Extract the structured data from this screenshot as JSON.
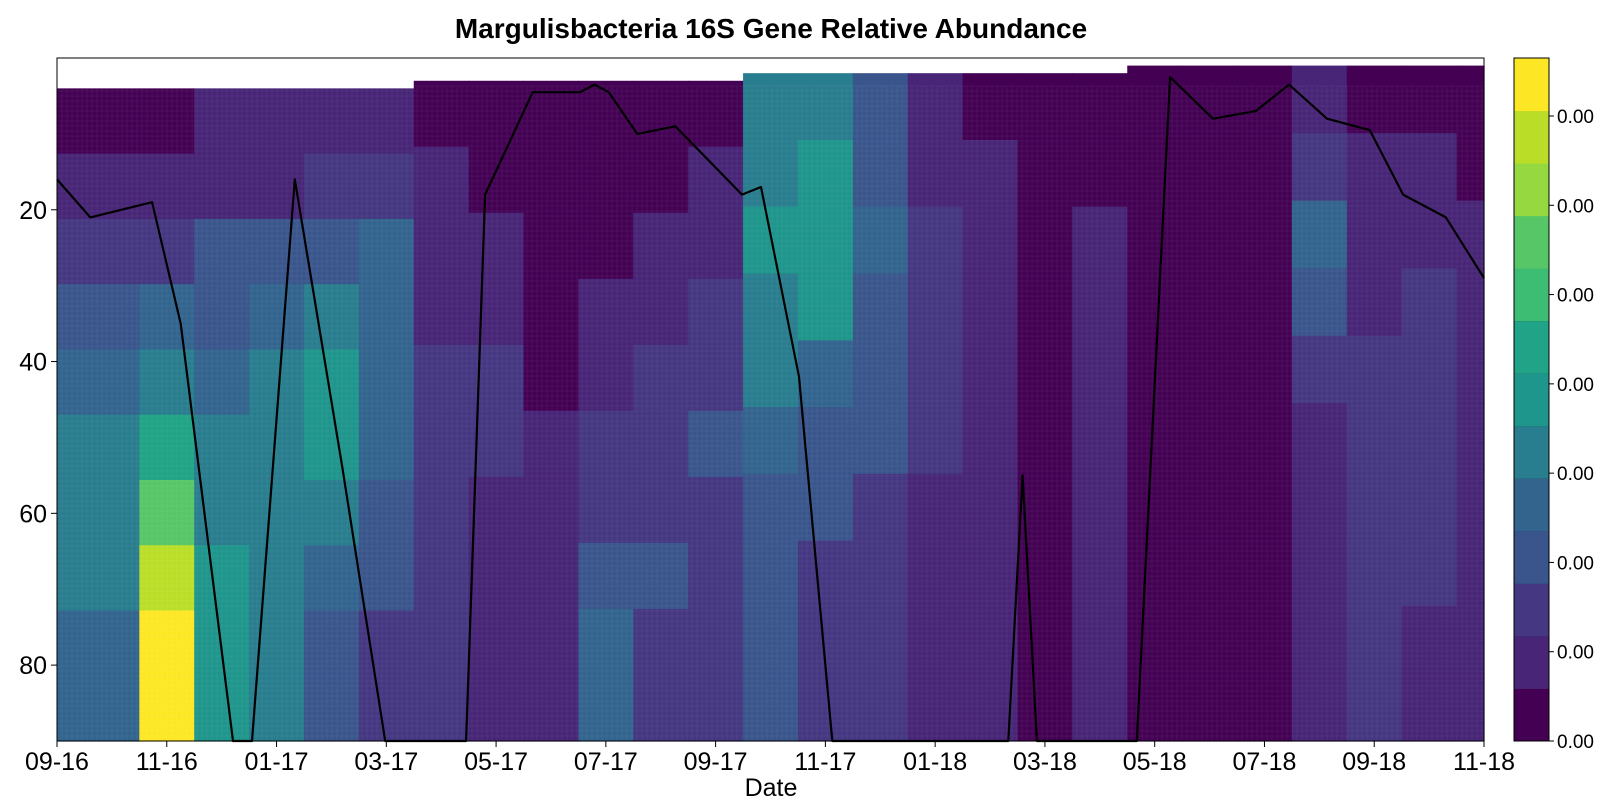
{
  "chart_data": {
    "type": "heatmap",
    "title": "Margulisbacteria 16S Gene Relative Abundance",
    "xlabel": "Date",
    "ylabel": "",
    "x_tick_labels": [
      "09-16",
      "11-16",
      "01-17",
      "03-17",
      "05-17",
      "07-17",
      "09-17",
      "11-17",
      "01-18",
      "03-18",
      "05-18",
      "07-18",
      "09-18",
      "11-18"
    ],
    "y_tick_labels": [
      "20",
      "40",
      "60",
      "80"
    ],
    "y_ticks": [
      20,
      40,
      60,
      80
    ],
    "ylim": [
      90,
      0
    ],
    "y_inverted": true,
    "colorbar": {
      "tick_labels": [
        "0.00",
        "0.00",
        "0.00",
        "0.00",
        "0.00",
        "0.00",
        "0.00",
        "0.00"
      ],
      "levels": 13,
      "colors": [
        "#440154",
        "#481467",
        "#482576",
        "#453781",
        "#3f4788",
        "#39558c",
        "#32648e",
        "#2d718e",
        "#287d8e",
        "#238a8d",
        "#1f968b",
        "#20a386",
        "#29af7f",
        "#3dbc74",
        "#56c667",
        "#75d054",
        "#95d840",
        "#bade28",
        "#dde318",
        "#fde725"
      ]
    },
    "columns": [
      {
        "date": "09-16",
        "top": 4,
        "vals": [
          0.05,
          0.1,
          0.2,
          0.3,
          0.35,
          0.4,
          0.42,
          0.4,
          0.35,
          0.32
        ]
      },
      {
        "date": "10-16",
        "top": 4,
        "vals": [
          0.05,
          0.1,
          0.18,
          0.28,
          0.35,
          0.42,
          0.45,
          0.4,
          0.38,
          0.35
        ]
      },
      {
        "date": "11-16",
        "top": 4,
        "vals": [
          0.06,
          0.12,
          0.2,
          0.32,
          0.45,
          0.6,
          0.75,
          0.9,
          0.98,
          1.0
        ]
      },
      {
        "date": "12-16",
        "top": 4,
        "vals": [
          0.08,
          0.15,
          0.25,
          0.3,
          0.35,
          0.4,
          0.45,
          0.48,
          0.5,
          0.5
        ]
      },
      {
        "date": "01-17",
        "top": 4,
        "vals": [
          0.1,
          0.15,
          0.25,
          0.35,
          0.45,
          0.45,
          0.45,
          0.42,
          0.4,
          0.4
        ]
      },
      {
        "date": "02-17",
        "top": 4,
        "vals": [
          0.08,
          0.18,
          0.3,
          0.42,
          0.48,
          0.48,
          0.42,
          0.36,
          0.3,
          0.28
        ]
      },
      {
        "date": "03-17",
        "top": 4,
        "vals": [
          0.1,
          0.22,
          0.32,
          0.36,
          0.35,
          0.32,
          0.28,
          0.25,
          0.22,
          0.2
        ]
      },
      {
        "date": "04-17",
        "top": 3,
        "vals": [
          0.05,
          0.1,
          0.12,
          0.15,
          0.18,
          0.2,
          0.18,
          0.18,
          0.18,
          0.18
        ]
      },
      {
        "date": "05-17",
        "top": 3,
        "vals": [
          0.02,
          0.05,
          0.1,
          0.15,
          0.18,
          0.18,
          0.15,
          0.12,
          0.1,
          0.08
        ]
      },
      {
        "date": "06-17",
        "top": 3,
        "vals": [
          0.0,
          0.02,
          0.04,
          0.05,
          0.06,
          0.08,
          0.1,
          0.12,
          0.15,
          0.15
        ]
      },
      {
        "date": "07-17",
        "top": 3,
        "vals": [
          0.0,
          0.02,
          0.05,
          0.08,
          0.15,
          0.18,
          0.22,
          0.28,
          0.32,
          0.32
        ]
      },
      {
        "date": "08-17",
        "top": 3,
        "vals": [
          0.02,
          0.05,
          0.1,
          0.15,
          0.18,
          0.2,
          0.22,
          0.25,
          0.22,
          0.2
        ]
      },
      {
        "date": "09-17",
        "top": 3,
        "vals": [
          0.05,
          0.08,
          0.12,
          0.18,
          0.22,
          0.25,
          0.22,
          0.2,
          0.18,
          0.16
        ]
      },
      {
        "date": "10-17",
        "top": 2,
        "vals": [
          0.4,
          0.45,
          0.48,
          0.46,
          0.4,
          0.35,
          0.3,
          0.28,
          0.26,
          0.26
        ]
      },
      {
        "date": "11-17",
        "top": 2,
        "vals": [
          0.42,
          0.5,
          0.52,
          0.48,
          0.38,
          0.3,
          0.25,
          0.22,
          0.22,
          0.22
        ]
      },
      {
        "date": "12-17",
        "top": 2,
        "vals": [
          0.25,
          0.3,
          0.32,
          0.3,
          0.28,
          0.25,
          0.22,
          0.2,
          0.18,
          0.18
        ]
      },
      {
        "date": "01-18",
        "top": 2,
        "vals": [
          0.1,
          0.15,
          0.2,
          0.22,
          0.2,
          0.18,
          0.15,
          0.12,
          0.1,
          0.1
        ]
      },
      {
        "date": "02-18",
        "top": 2,
        "vals": [
          0.05,
          0.08,
          0.1,
          0.12,
          0.14,
          0.12,
          0.12,
          0.1,
          0.08,
          0.08
        ]
      },
      {
        "date": "03-18",
        "top": 2,
        "vals": [
          0.0,
          0.02,
          0.02,
          0.03,
          0.03,
          0.03,
          0.03,
          0.02,
          0.02,
          0.02
        ]
      },
      {
        "date": "04-18",
        "top": 2,
        "vals": [
          0.02,
          0.05,
          0.08,
          0.12,
          0.15,
          0.15,
          0.12,
          0.1,
          0.1,
          0.08
        ]
      },
      {
        "date": "05-18",
        "top": 1,
        "vals": [
          0.03,
          0.05,
          0.05,
          0.05,
          0.05,
          0.05,
          0.05,
          0.05,
          0.05,
          0.05
        ]
      },
      {
        "date": "06-18",
        "top": 1,
        "vals": [
          0.0,
          0.02,
          0.02,
          0.02,
          0.02,
          0.02,
          0.02,
          0.02,
          0.02,
          0.02
        ]
      },
      {
        "date": "07-18",
        "top": 1,
        "vals": [
          0.02,
          0.02,
          0.02,
          0.02,
          0.02,
          0.02,
          0.02,
          0.02,
          0.02,
          0.02
        ]
      },
      {
        "date": "08-18",
        "top": 1,
        "vals": [
          0.1,
          0.18,
          0.35,
          0.3,
          0.2,
          0.12,
          0.1,
          0.1,
          0.1,
          0.08
        ]
      },
      {
        "date": "09-18",
        "top": 1,
        "vals": [
          0.05,
          0.08,
          0.12,
          0.15,
          0.18,
          0.2,
          0.2,
          0.18,
          0.18,
          0.18
        ]
      },
      {
        "date": "10-18",
        "top": 1,
        "vals": [
          0.05,
          0.1,
          0.15,
          0.2,
          0.22,
          0.2,
          0.18,
          0.16,
          0.15,
          0.15
        ]
      },
      {
        "date": "11-18",
        "top": 1,
        "vals": [
          0.02,
          0.05,
          0.08,
          0.12,
          0.14,
          0.15,
          0.14,
          0.12,
          0.1,
          0.1
        ]
      }
    ],
    "depth_line": [
      {
        "t": 0.0,
        "d": 16
      },
      {
        "t": 0.7,
        "d": 21
      },
      {
        "t": 2.0,
        "d": 19
      },
      {
        "t": 2.6,
        "d": 35
      },
      {
        "t": 3.7,
        "d": 90
      },
      {
        "t": 4.1,
        "d": 90
      },
      {
        "t": 5.0,
        "d": 16
      },
      {
        "t": 6.0,
        "d": 54
      },
      {
        "t": 6.9,
        "d": 90
      },
      {
        "t": 8.6,
        "d": 90
      },
      {
        "t": 9.0,
        "d": 18
      },
      {
        "t": 10.0,
        "d": 4.5
      },
      {
        "t": 11.0,
        "d": 4.5
      },
      {
        "t": 11.3,
        "d": 3.5
      },
      {
        "t": 11.6,
        "d": 4.5
      },
      {
        "t": 12.2,
        "d": 10
      },
      {
        "t": 13.0,
        "d": 9
      },
      {
        "t": 14.4,
        "d": 18
      },
      {
        "t": 14.8,
        "d": 17
      },
      {
        "t": 15.6,
        "d": 42
      },
      {
        "t": 16.3,
        "d": 90
      },
      {
        "t": 20.0,
        "d": 90
      },
      {
        "t": 20.3,
        "d": 55
      },
      {
        "t": 20.6,
        "d": 90
      },
      {
        "t": 22.7,
        "d": 90
      },
      {
        "t": 23.4,
        "d": 2.5
      },
      {
        "t": 24.3,
        "d": 8
      },
      {
        "t": 25.2,
        "d": 7
      },
      {
        "t": 25.9,
        "d": 3.5
      },
      {
        "t": 26.7,
        "d": 8
      },
      {
        "t": 27.6,
        "d": 9.5
      },
      {
        "t": 28.3,
        "d": 18
      },
      {
        "t": 29.2,
        "d": 21
      },
      {
        "t": 30.0,
        "d": 29
      }
    ]
  }
}
